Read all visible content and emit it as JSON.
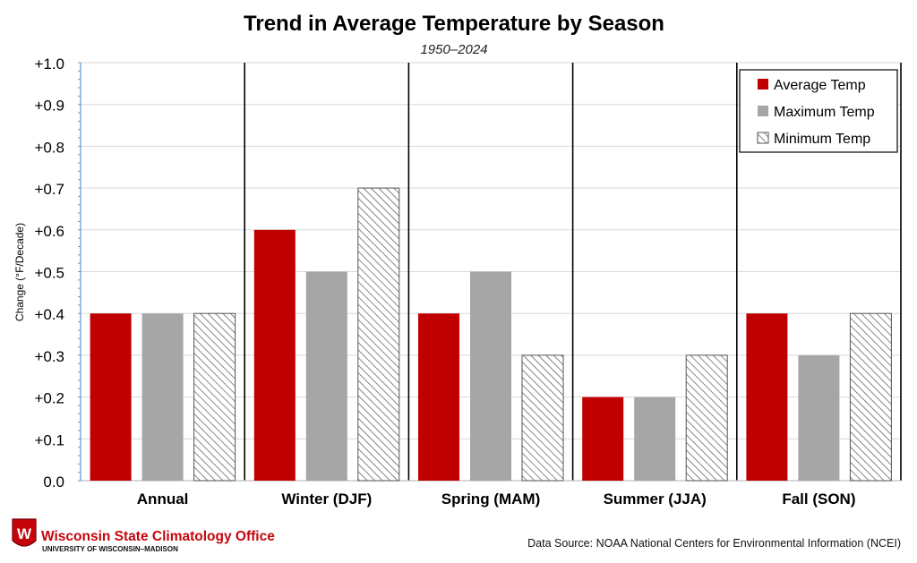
{
  "chart_data": {
    "type": "bar",
    "title": "Trend in Average Temperature by Season",
    "subtitle": "1950–2024",
    "xlabel": "",
    "ylabel": "Change (°F/Decade)",
    "ylim": [
      0,
      1.0
    ],
    "yticks": [
      "0.0",
      "+0.1",
      "+0.2",
      "+0.3",
      "+0.4",
      "+0.5",
      "+0.6",
      "+0.7",
      "+0.8",
      "+0.9",
      "+1.0"
    ],
    "grid": true,
    "legend_position": "top-right",
    "categories": [
      "Annual",
      "Winter (DJF)",
      "Spring (MAM)",
      "Summer (JJA)",
      "Fall (SON)"
    ],
    "series": [
      {
        "name": "Average Temp",
        "values": [
          0.4,
          0.6,
          0.4,
          0.2,
          0.4
        ],
        "color": "#c00000",
        "pattern": "solid"
      },
      {
        "name": "Maximum Temp",
        "values": [
          0.4,
          0.5,
          0.5,
          0.2,
          0.3
        ],
        "color": "#a6a6a6",
        "pattern": "solid"
      },
      {
        "name": "Minimum Temp",
        "values": [
          0.4,
          0.7,
          0.3,
          0.3,
          0.4
        ],
        "color": "#ffffff",
        "pattern": "hatch"
      }
    ]
  },
  "branding": {
    "org_name": "Wisconsin State Climatology Office",
    "org_sub": "UNIVERSITY OF WISCONSIN–MADISON",
    "logo_letter": "W",
    "brand_color": "#c5050c"
  },
  "source": "Data Source: NOAA National Centers for Environmental Information (NCEI)"
}
